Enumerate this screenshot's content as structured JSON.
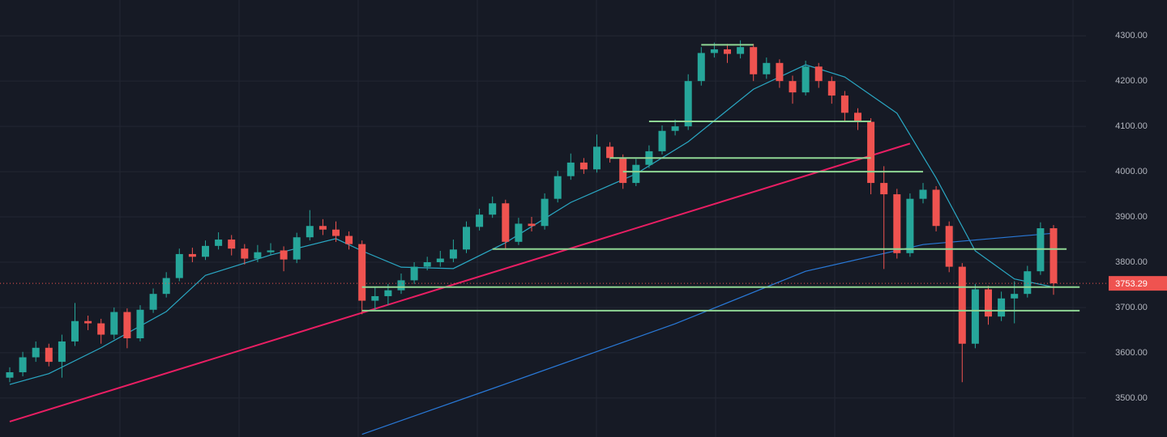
{
  "chart_data": {
    "type": "candlestick",
    "ylim": [
      3414,
      4379
    ],
    "yticks": [
      {
        "value": 3500,
        "label": "3500.00"
      },
      {
        "value": 3600,
        "label": "3600.00"
      },
      {
        "value": 3700,
        "label": "3700.00"
      },
      {
        "value": 3800,
        "label": "3800.00"
      },
      {
        "value": 3900,
        "label": "3900.00"
      },
      {
        "value": 4000,
        "label": "4000.00"
      },
      {
        "value": 4100,
        "label": "4100.00"
      },
      {
        "value": 4200,
        "label": "4200.00"
      },
      {
        "value": 4300,
        "label": "4300.00"
      }
    ],
    "grid": true,
    "up_color": "#26a69a",
    "down_color": "#ef5350",
    "open": [
      3545,
      3557,
      3590,
      3611,
      3580,
      3625,
      3670,
      3665,
      3640,
      3690,
      3632,
      3695,
      3730,
      3765,
      3818,
      3812,
      3836,
      3850,
      3830,
      3808,
      3822,
      3826,
      3806,
      3855,
      3880,
      3872,
      3858,
      3840,
      3715,
      3725,
      3738,
      3760,
      3790,
      3800,
      3808,
      3828,
      3878,
      3905,
      3930,
      3845,
      3885,
      3880,
      3940,
      3990,
      4020,
      4005,
      4055,
      4030,
      3975,
      4015,
      4045,
      4090,
      4100,
      4200,
      4262,
      4270,
      4260,
      4275,
      4215,
      4240,
      4200,
      4175,
      4232,
      4200,
      4168,
      4130,
      4110,
      3975,
      3950,
      3820,
      3940,
      3960,
      3880,
      3790,
      3620,
      3740,
      3680,
      3720,
      3730,
      3780,
      3875
    ],
    "high": [
      3568,
      3602,
      3625,
      3620,
      3640,
      3710,
      3682,
      3675,
      3700,
      3698,
      3705,
      3742,
      3778,
      3830,
      3832,
      3848,
      3866,
      3860,
      3840,
      3838,
      3842,
      3835,
      3865,
      3915,
      3895,
      3890,
      3868,
      3848,
      3745,
      3752,
      3775,
      3800,
      3812,
      3825,
      3850,
      3890,
      3918,
      3945,
      3938,
      3898,
      3900,
      3952,
      4002,
      4040,
      4030,
      4082,
      4065,
      4038,
      4028,
      4058,
      4102,
      4115,
      4215,
      4275,
      4285,
      4282,
      4290,
      4282,
      4252,
      4248,
      4212,
      4245,
      4240,
      4210,
      4178,
      4140,
      4118,
      4012,
      3962,
      3952,
      3975,
      3968,
      3890,
      3798,
      3752,
      3748,
      3735,
      3758,
      3792,
      3888,
      3882
    ],
    "low": [
      3535,
      3548,
      3580,
      3570,
      3545,
      3615,
      3650,
      3620,
      3630,
      3610,
      3625,
      3688,
      3722,
      3758,
      3800,
      3805,
      3828,
      3815,
      3795,
      3800,
      3815,
      3780,
      3798,
      3848,
      3860,
      3845,
      3828,
      3685,
      3692,
      3705,
      3730,
      3752,
      3782,
      3790,
      3800,
      3820,
      3870,
      3898,
      3830,
      3838,
      3868,
      3872,
      3932,
      3982,
      3995,
      3998,
      4020,
      3962,
      3968,
      4008,
      4038,
      4080,
      4092,
      4190,
      4252,
      4240,
      4250,
      4200,
      4205,
      4185,
      4150,
      4168,
      4185,
      4150,
      4112,
      4092,
      3950,
      3785,
      3808,
      3812,
      3930,
      3868,
      3778,
      3535,
      3610,
      3662,
      3670,
      3665,
      3722,
      3772,
      3728
    ],
    "close": [
      3557,
      3590,
      3611,
      3580,
      3625,
      3670,
      3665,
      3640,
      3690,
      3632,
      3695,
      3730,
      3765,
      3818,
      3812,
      3836,
      3850,
      3830,
      3808,
      3822,
      3826,
      3806,
      3855,
      3880,
      3872,
      3858,
      3840,
      3715,
      3725,
      3738,
      3760,
      3790,
      3800,
      3808,
      3828,
      3878,
      3905,
      3930,
      3845,
      3885,
      3880,
      3940,
      3990,
      4020,
      4005,
      4055,
      4030,
      3975,
      4015,
      4045,
      4090,
      4100,
      4200,
      4262,
      4270,
      4260,
      4275,
      4215,
      4240,
      4200,
      4175,
      4232,
      4200,
      4168,
      4130,
      4110,
      3975,
      3950,
      3820,
      3940,
      3960,
      3880,
      3790,
      3620,
      3740,
      3680,
      3720,
      3730,
      3780,
      3875,
      3753.29
    ],
    "moving_averages": [
      {
        "color": "#2aa8c4",
        "x": [
          0,
          3,
          7,
          12,
          15,
          20,
          25,
          27,
          30,
          34,
          38,
          43,
          48,
          52,
          57,
          61,
          64,
          68,
          71,
          74,
          77,
          80
        ],
        "values": [
          3530,
          3554,
          3611,
          3691,
          3771,
          3816,
          3852,
          3825,
          3789,
          3786,
          3843,
          3932,
          3995,
          4066,
          4182,
          4236,
          4209,
          4129,
          3986,
          3825,
          3763,
          3745
        ]
      },
      {
        "color": "#2979d8",
        "x": [
          27,
          37,
          51,
          61,
          70,
          80
        ],
        "values": [
          3420,
          3521,
          3664,
          3780,
          3839,
          3864
        ]
      }
    ],
    "trendline": {
      "color": "#e91e63",
      "x": [
        0,
        69
      ],
      "values": [
        3448,
        4062
      ]
    },
    "level_color": "#8fd694",
    "levels": [
      {
        "price": 4280,
        "from": 53,
        "to": 57
      },
      {
        "price": 4111,
        "from": 49,
        "to": 66
      },
      {
        "price": 4030,
        "from": 46,
        "to": 66
      },
      {
        "price": 4000,
        "from": 47,
        "to": 70
      },
      {
        "price": 3829,
        "from": 37,
        "to": 81
      },
      {
        "price": 3745,
        "from": 27,
        "to": 82
      },
      {
        "price": 3693,
        "from": 27,
        "to": 82
      }
    ],
    "last_price": {
      "value": 3753.29,
      "label": "3753.29"
    }
  }
}
